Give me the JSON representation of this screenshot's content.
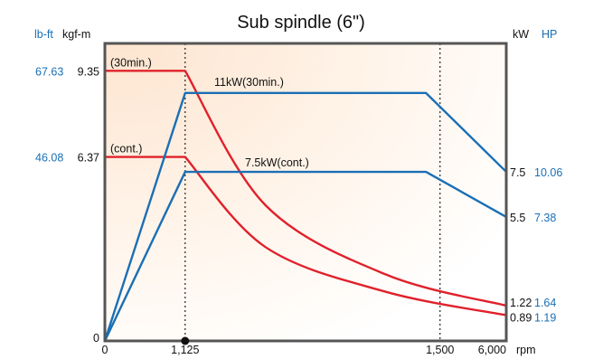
{
  "chart_data": {
    "type": "line",
    "title": "Sub spindle (6\")",
    "left_units": {
      "imperial": "lb-ft",
      "metric": "kgf-m"
    },
    "right_units": {
      "metric": "kW",
      "imperial": "HP"
    },
    "x_unit": "rpm",
    "x_ticks": [
      "0",
      "1,125",
      "1,500",
      "6,000"
    ],
    "x_positions": [
      0,
      0.2,
      0.835,
      1.0
    ],
    "torque_ticks": [
      {
        "lbft": "67.63",
        "kgfm": "9.35",
        "value": 9.35
      },
      {
        "lbft": "46.08",
        "kgfm": "6.37",
        "value": 6.37
      },
      {
        "lbft": "",
        "kgfm": "0",
        "value": 0
      }
    ],
    "power_end_labels": [
      {
        "kw": "7.5",
        "hp": "10.06",
        "value": 7.5
      },
      {
        "kw": "5.5",
        "hp": "7.38",
        "value": 5.5
      },
      {
        "kw": "1.22",
        "hp": "1.64",
        "value": 1.22
      },
      {
        "kw": "0.89",
        "hp": "1.19",
        "value": 0.89
      }
    ],
    "torque_max": 10.3,
    "power_max": 13.2,
    "series": [
      {
        "name": "(30min.)",
        "kind": "torque",
        "color": "#e0212b",
        "points": [
          [
            0,
            9.35
          ],
          [
            0.2,
            9.35
          ],
          [
            0.4,
            4.7
          ],
          [
            0.7,
            2.3
          ],
          [
            1.0,
            1.22
          ]
        ]
      },
      {
        "name": "(cont.)",
        "kind": "torque",
        "color": "#e0212b",
        "points": [
          [
            0,
            6.37
          ],
          [
            0.2,
            6.37
          ],
          [
            0.4,
            3.25
          ],
          [
            0.7,
            1.7
          ],
          [
            1.0,
            0.89
          ]
        ]
      },
      {
        "name": "11kW(30min.)",
        "kind": "power",
        "color": "#1a6fb5",
        "points": [
          [
            0,
            0
          ],
          [
            0.2,
            11
          ],
          [
            0.8,
            11
          ],
          [
            1.0,
            7.5
          ]
        ]
      },
      {
        "name": "7.5kW(cont.)",
        "kind": "power",
        "color": "#1a6fb5",
        "points": [
          [
            0,
            0
          ],
          [
            0.2,
            7.5
          ],
          [
            0.8,
            7.5
          ],
          [
            1.0,
            5.5
          ]
        ]
      }
    ],
    "vertical_markers": [
      0.2,
      0.835
    ],
    "grid": false,
    "legend": "none"
  }
}
